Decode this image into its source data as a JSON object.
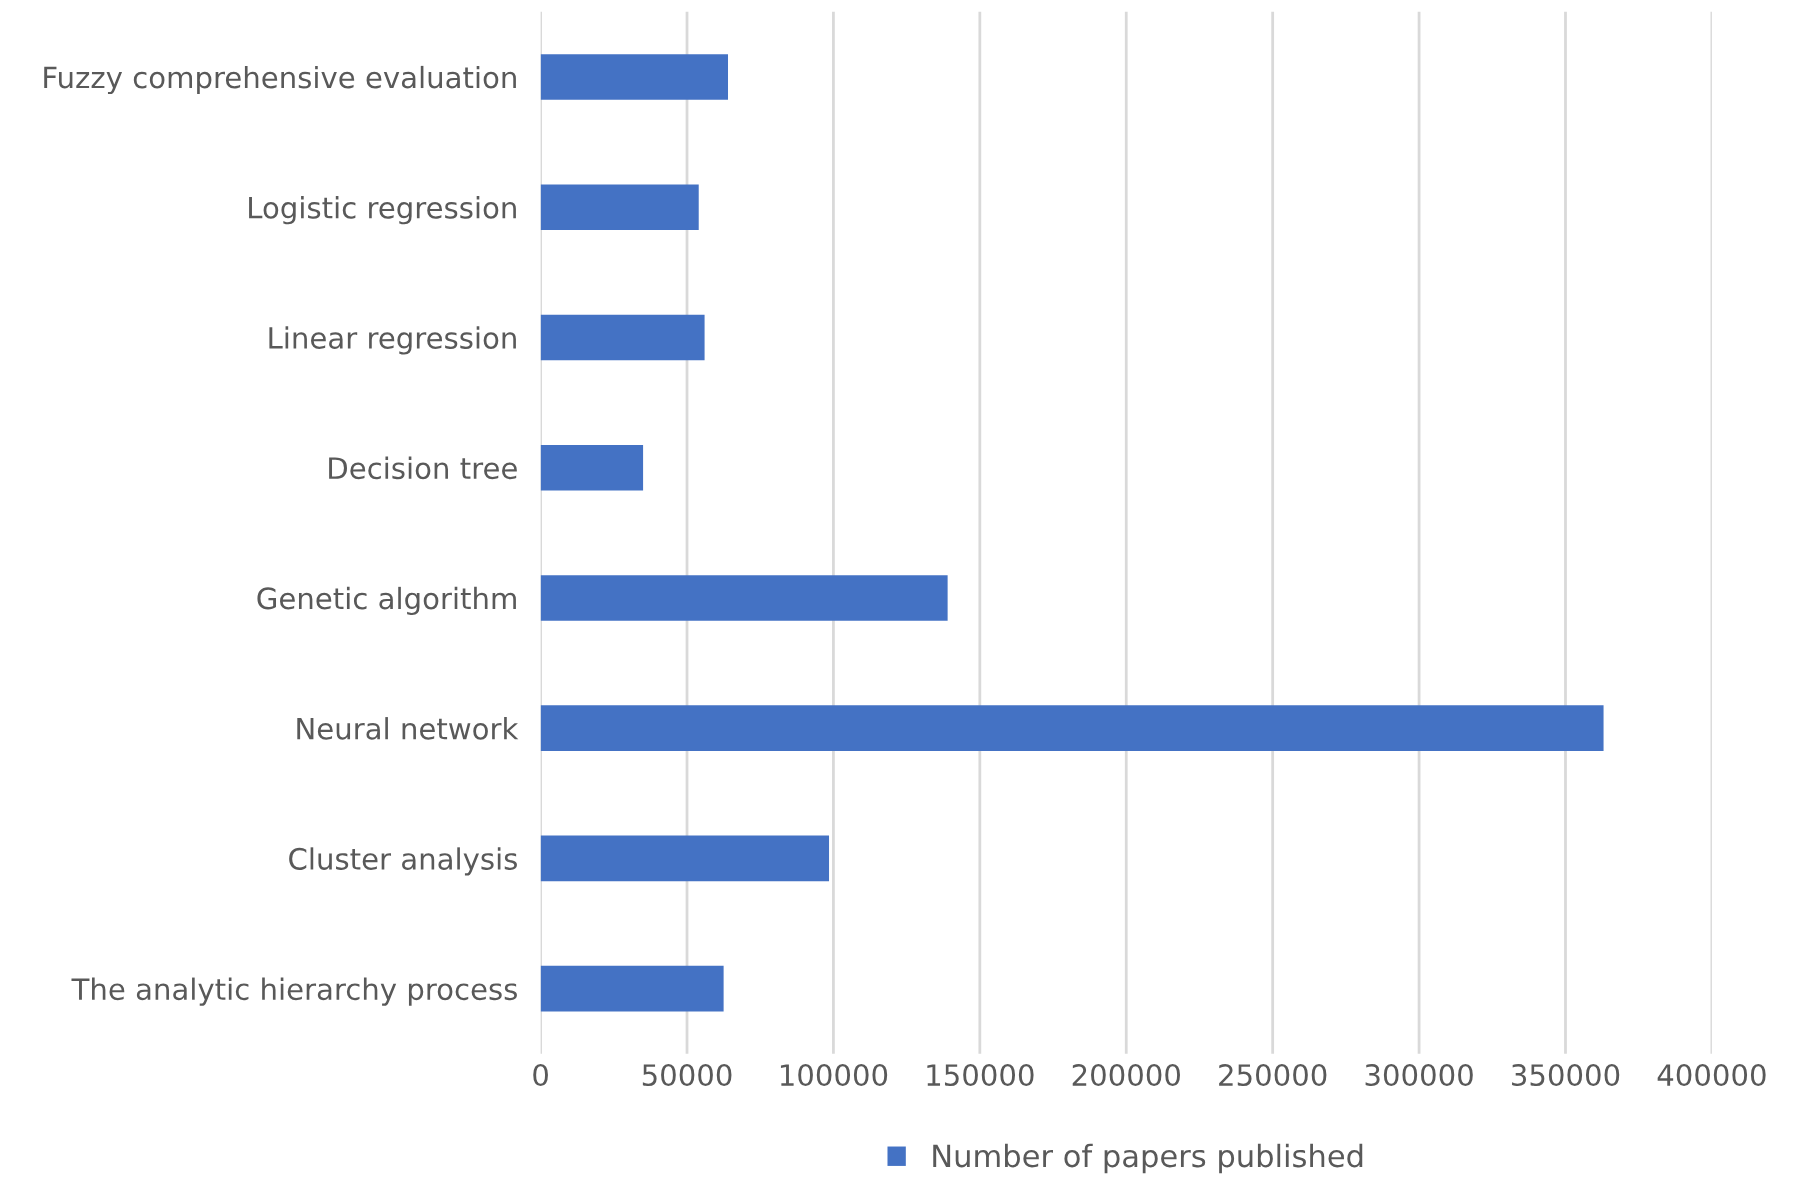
{
  "chart_data": {
    "type": "bar",
    "orientation": "horizontal",
    "categories": [
      "Fuzzy comprehensive evaluation",
      "Logistic regression",
      "Linear regression",
      "Decision tree",
      "Genetic algorithm",
      "Neural network",
      "Cluster analysis",
      "The analytic hierarchy process"
    ],
    "series": [
      {
        "name": "Number of papers published",
        "color": "#4472c4",
        "values": [
          64000,
          54000,
          56000,
          35000,
          139000,
          363000,
          98500,
          62500
        ]
      }
    ],
    "xlim": [
      0,
      400000
    ],
    "xticks": [
      0,
      50000,
      100000,
      150000,
      200000,
      250000,
      300000,
      350000,
      400000
    ],
    "grid": "x",
    "legend": "bottom"
  }
}
